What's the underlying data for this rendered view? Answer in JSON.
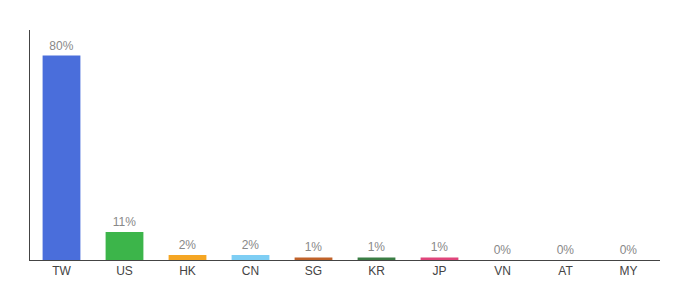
{
  "chart_data": {
    "type": "bar",
    "categories": [
      "TW",
      "US",
      "HK",
      "CN",
      "SG",
      "KR",
      "JP",
      "VN",
      "AT",
      "MY"
    ],
    "values": [
      80,
      11,
      2,
      2,
      1,
      1,
      1,
      0,
      0,
      0
    ],
    "value_labels": [
      "80%",
      "11%",
      "2%",
      "2%",
      "1%",
      "1%",
      "1%",
      "0%",
      "0%",
      "0%"
    ],
    "colors": [
      "#4a6edb",
      "#3cb54a",
      "#f5a623",
      "#7ecef4",
      "#c0622a",
      "#3a7d44",
      "#e0457b",
      "#cccccc",
      "#cccccc",
      "#cccccc"
    ],
    "ylim": [
      0,
      90
    ],
    "data_labels": true,
    "tick_labels": "x",
    "grid": false
  }
}
